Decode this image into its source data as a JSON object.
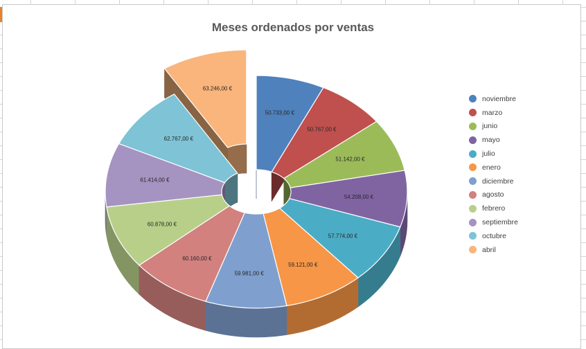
{
  "chart_data": {
    "type": "pie",
    "variant": "3d-exploded-doughnut",
    "title": "Meses ordenados por ventas",
    "legend_position": "right",
    "slices": [
      {
        "label": "noviembre",
        "value": 50733,
        "display": "50.733,00 €",
        "color": "#4f81bd",
        "exploded": false
      },
      {
        "label": "marzo",
        "value": 50767,
        "display": "50.767,00 €",
        "color": "#c0504d",
        "exploded": false
      },
      {
        "label": "junio",
        "value": 51142,
        "display": "51.142,00 €",
        "color": "#9bbb59",
        "exploded": false
      },
      {
        "label": "mayo",
        "value": 54208,
        "display": "54.208,00 €",
        "color": "#8064a2",
        "exploded": false
      },
      {
        "label": "julio",
        "value": 57774,
        "display": "57.774,00 €",
        "color": "#4bacc6",
        "exploded": false
      },
      {
        "label": "enero",
        "value": 59121,
        "display": "59.121,00 €",
        "color": "#f79646",
        "exploded": false
      },
      {
        "label": "diciembre",
        "value": 59981,
        "display": "59.981,00 €",
        "color": "#7f9fcf",
        "exploded": false
      },
      {
        "label": "agosto",
        "value": 60160,
        "display": "60.160,00 €",
        "color": "#d2817e",
        "exploded": false
      },
      {
        "label": "febrero",
        "value": 60878,
        "display": "60.878,00 €",
        "color": "#b8cf8a",
        "exploded": false
      },
      {
        "label": "septiembre",
        "value": 61414,
        "display": "61.414,00 €",
        "color": "#a593c1",
        "exploded": false
      },
      {
        "label": "octubre",
        "value": 62767,
        "display": "62.767,00 €",
        "color": "#7ec3d6",
        "exploded": false
      },
      {
        "label": "abril",
        "value": 63246,
        "display": "63.246,00 €",
        "color": "#f9b57c",
        "exploded": true
      }
    ]
  }
}
